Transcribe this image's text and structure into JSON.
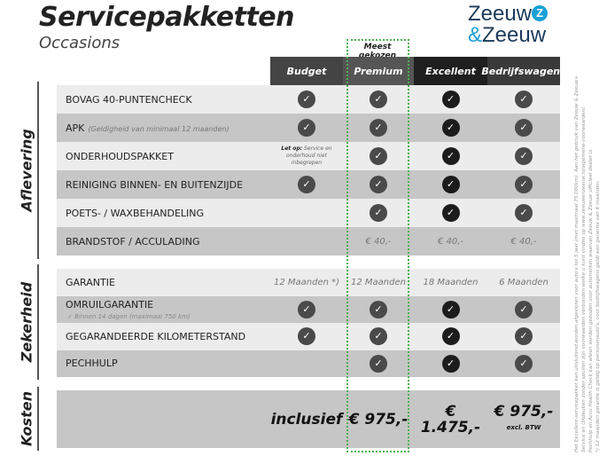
{
  "header": {
    "title": "Servicepakketten",
    "subtitle": "Occasions",
    "logo_line1": "Zeeuw",
    "logo_amp": "&",
    "logo_line2": "Zeeuw",
    "badge": "Meest gekozen"
  },
  "columns": [
    {
      "label": "Budget",
      "color": "#444444"
    },
    {
      "label": "Premium",
      "color": "#555555"
    },
    {
      "label": "Excellent",
      "color": "#1f1f1f"
    },
    {
      "label": "Bedrijfswagens",
      "color": "#3a3a3a"
    }
  ],
  "sections": [
    {
      "title": "Aflevering",
      "rows": [
        {
          "label": "BOVAG 40-PUNTENCHECK",
          "cells": [
            "check",
            "check",
            "check",
            "check"
          ]
        },
        {
          "label": "APK",
          "note": "(Geldigheid van minimaal 12 maanden)",
          "cells": [
            "check",
            "check",
            "check",
            "check"
          ]
        },
        {
          "label": "ONDERHOUDSPAKKET",
          "cells": [
            {
              "note_bold": "Let op:",
              "note": "Service en onderhoud niet inbegrepen"
            },
            "check",
            "check",
            "check"
          ]
        },
        {
          "label": "REINIGING BINNEN- EN BUITENZIJDE",
          "cells": [
            "check",
            "check",
            "check",
            "check"
          ]
        },
        {
          "label": "POETS- / WAXBEHANDELING",
          "cells": [
            "",
            "check",
            "check",
            "check"
          ]
        },
        {
          "label": "BRANDSTOF / ACCULADING",
          "cells": [
            "",
            "€ 40,-",
            "€ 40,-",
            "€ 40,-"
          ]
        }
      ]
    },
    {
      "title": "Zekerheid",
      "rows": [
        {
          "label": "GARANTIE",
          "cells": [
            "12 Maanden *)",
            "12 Maanden",
            "18 Maanden",
            "6 Maanden"
          ]
        },
        {
          "label": "OMRUILGARANTIE",
          "sub": "✓  Binnen 14 dagen (maximaal 750 km)",
          "cells": [
            "check",
            "check",
            "check",
            "check"
          ]
        },
        {
          "label": "GEGARANDEERDE KILOMETERSTAND",
          "cells": [
            "check",
            "check",
            "check",
            "check"
          ]
        },
        {
          "label": "PECHHULP",
          "cells": [
            "",
            "check",
            "check",
            "check"
          ]
        }
      ]
    },
    {
      "title": "Kosten",
      "rows": [
        {
          "label": "",
          "cells": [
            {
              "price": "inclusief"
            },
            {
              "price": "€ 975,-"
            },
            {
              "price": "€ 1.475,-"
            },
            {
              "price": "€ 975,-",
              "small": "excl. BTW"
            }
          ]
        }
      ]
    }
  ],
  "footnote": [
    "Het Excellent-servicepakket kan uitsluitend worden afgesloten voor auto's tot 5 jaar (met maximaal 75.000km). Aan het gebruik van Zeeuw & Zeeuw+",
    "Service en Uitdeuken zonder spuiten zijn voorwaarden verbonden welke u kunt vinden op www.zeeuwenzeeuw.nl/algemene-voorwaarden/.",
    "Pechhulp en Accu Health Check kan alleen worden geboden voor automerken waarvan Zeeuw & Zeeuw officieel dealer is.",
    "*) 12 maanden garantie is geldig op personenauto's, voor bedrijfswagens geldt een garantie van 6 maanden."
  ]
}
